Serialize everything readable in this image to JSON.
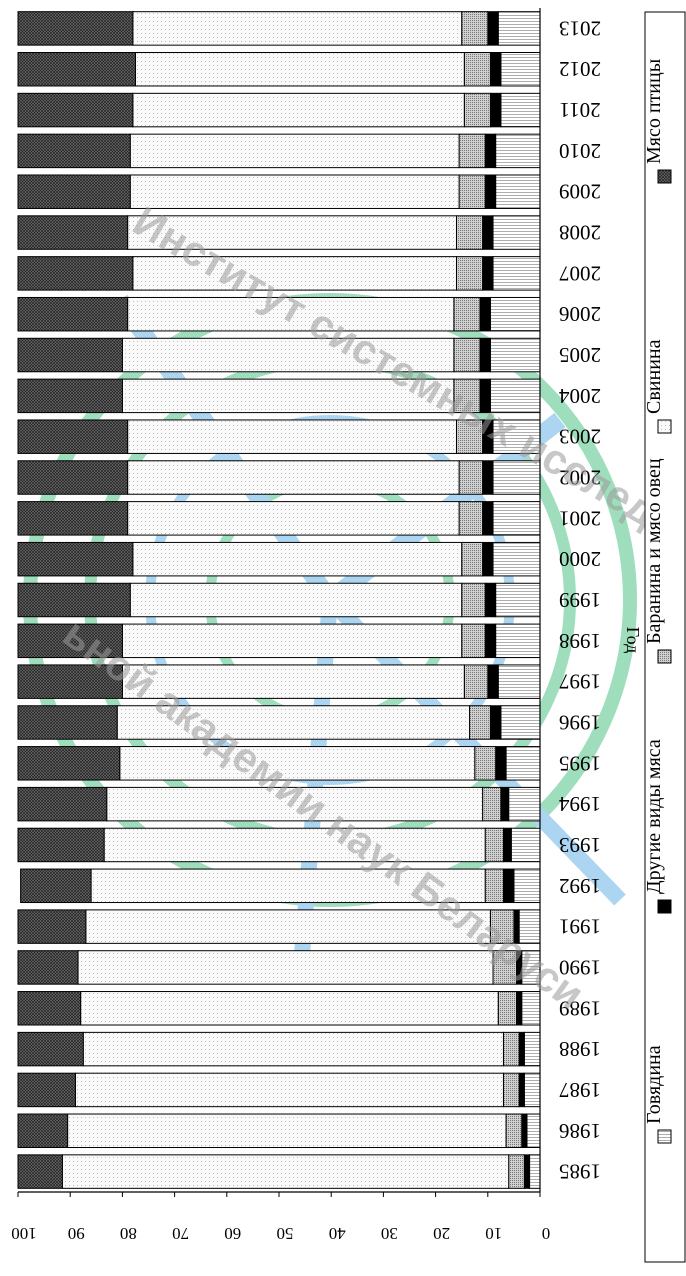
{
  "chart_data": {
    "type": "bar",
    "stacked": true,
    "orientation": "rotated-180",
    "xlabel": "Год",
    "ylabel": "",
    "ylim": [
      0,
      100
    ],
    "yticks": [
      0,
      10,
      20,
      30,
      40,
      50,
      60,
      70,
      80,
      90,
      100
    ],
    "categories": [
      "1985",
      "1986",
      "1987",
      "1988",
      "1989",
      "1990",
      "1991",
      "1992",
      "1993",
      "1994",
      "1995",
      "1996",
      "1997",
      "1998",
      "1999",
      "2000",
      "2001",
      "2002",
      "2003",
      "2004",
      "2005",
      "2006",
      "2007",
      "2008",
      "2009",
      "2010",
      "2011",
      "2012",
      "2013"
    ],
    "legend_position": "right",
    "series": [
      {
        "name": "Говядина",
        "color": "#ffffff",
        "pattern": "vertical-lines",
        "values": [
          2.0,
          2.5,
          3.0,
          3.0,
          3.5,
          3.5,
          4.0,
          5.0,
          5.5,
          6.0,
          6.5,
          7.5,
          8.0,
          8.5,
          8.5,
          9.0,
          9.0,
          9.0,
          9.0,
          9.5,
          9.5,
          9.5,
          9.0,
          9.0,
          8.5,
          8.5,
          7.5,
          7.5,
          8.0
        ]
      },
      {
        "name": "Другие виды мяса",
        "color": "#000000",
        "pattern": "solid",
        "values": [
          1.0,
          1.0,
          1.0,
          1.0,
          1.0,
          1.0,
          1.0,
          2.0,
          1.5,
          1.5,
          2.0,
          2.0,
          2.0,
          2.0,
          2.0,
          2.0,
          2.0,
          2.0,
          2.0,
          2.0,
          2.0,
          2.0,
          2.0,
          2.0,
          2.0,
          2.0,
          2.0,
          2.0,
          2.0
        ]
      },
      {
        "name": "Баранина и мясо овец",
        "color": "#c8c8c8",
        "pattern": "dense-dots",
        "values": [
          3.0,
          3.0,
          3.0,
          3.0,
          3.5,
          4.5,
          4.5,
          3.5,
          3.5,
          3.5,
          4.0,
          4.0,
          4.5,
          4.5,
          4.5,
          4.0,
          4.5,
          4.5,
          5.0,
          5.0,
          5.0,
          5.0,
          5.0,
          5.0,
          5.0,
          5.0,
          5.0,
          5.0,
          5.0
        ]
      },
      {
        "name": "Свинина",
        "color": "#f4f4f4",
        "pattern": "sparse-dots",
        "values": [
          85.5,
          84.0,
          82.0,
          80.5,
          80.0,
          79.5,
          77.5,
          75.5,
          73.0,
          72.0,
          68.0,
          67.5,
          65.5,
          65.0,
          63.5,
          63.0,
          63.5,
          63.5,
          63.0,
          63.5,
          63.5,
          62.5,
          62.0,
          63.0,
          63.0,
          63.0,
          63.5,
          63.0,
          63.0
        ]
      },
      {
        "name": "Мясо птицы",
        "color": "#5a5a5a",
        "pattern": "crosshatch",
        "values": [
          8.5,
          9.5,
          11.0,
          12.5,
          12.0,
          11.5,
          13.0,
          13.5,
          16.5,
          17.0,
          19.5,
          19.0,
          20.0,
          20.0,
          21.5,
          22.0,
          21.0,
          21.0,
          21.0,
          20.0,
          20.0,
          21.0,
          22.0,
          21.0,
          21.5,
          21.5,
          22.0,
          22.5,
          22.0
        ]
      }
    ],
    "watermark": {
      "line1": "Институт системных исследо",
      "line2": "ьной академии наук Беларуси"
    }
  }
}
